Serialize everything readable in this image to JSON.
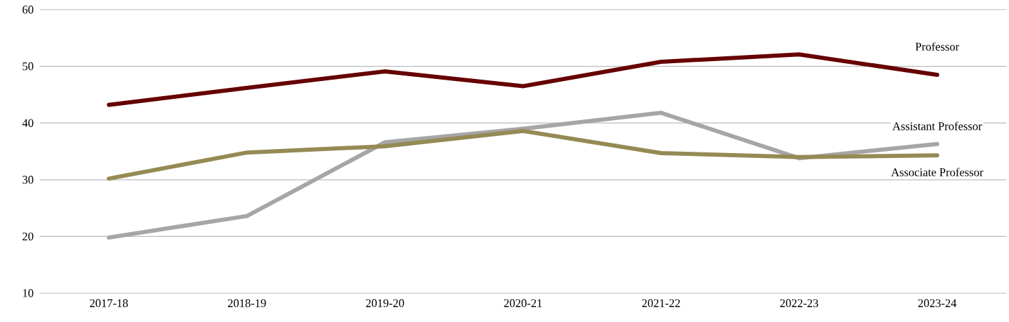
{
  "chart_data": {
    "type": "line",
    "categories": [
      "2017-18",
      "2018-19",
      "2019-20",
      "2020-21",
      "2021-22",
      "2022-23",
      "2023-24"
    ],
    "series": [
      {
        "name": "Professor",
        "color": "#660000",
        "values": [
          43.2,
          46.2,
          49.1,
          46.5,
          50.8,
          52.1,
          48.5
        ]
      },
      {
        "name": "Assistant Professor",
        "color": "#a6a6a6",
        "values": [
          19.8,
          23.6,
          36.6,
          39.0,
          41.8,
          33.8,
          36.3
        ]
      },
      {
        "name": "Associate Professor",
        "color": "#948a54",
        "values": [
          30.2,
          34.8,
          35.9,
          38.6,
          34.7,
          34.0,
          34.3
        ]
      }
    ],
    "ylim": [
      10,
      60
    ],
    "yticks": [
      10,
      20,
      30,
      40,
      50,
      60
    ],
    "grid": "y",
    "marker": "none",
    "line_style": "solid"
  }
}
